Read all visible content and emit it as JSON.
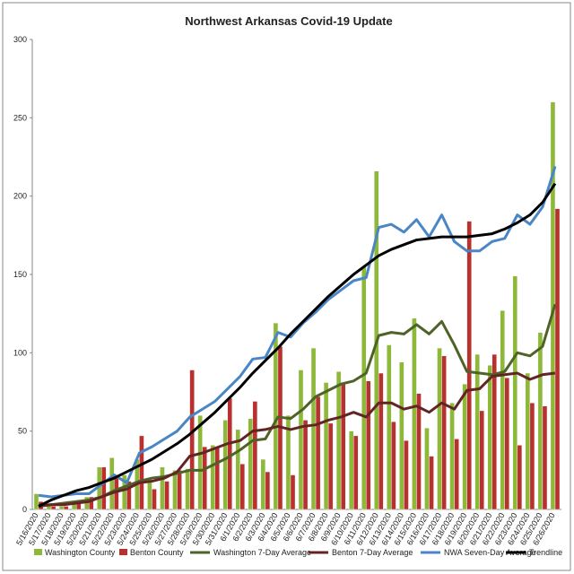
{
  "chart_data": {
    "type": "bar",
    "title": "Northwest Arkansas Covid-19 Update",
    "categories": [
      "5/16/2020",
      "5/17/2020",
      "5/18/2020",
      "5/19/2020",
      "5/20/2020",
      "5/21/2020",
      "5/22/2020",
      "5/23/2020",
      "5/24/2020",
      "5/25/2020",
      "5/26/2020",
      "5/27/2020",
      "5/28/2020",
      "5/29/2020",
      "5/30/2020",
      "5/31/2020",
      "6/1/2020",
      "6/2/2020",
      "6/3/2020",
      "6/4/2020",
      "6/5/2020",
      "6/6/2020",
      "6/7/2020",
      "6/8/2020",
      "6/9/2020",
      "6/10/2020",
      "6/11/2020",
      "6/12/2020",
      "6/13/2020",
      "6/14/2020",
      "6/15/2020",
      "6/16/2020",
      "6/17/2020",
      "6/18/2020",
      "6/19/2020",
      "6/20/2020",
      "6/21/2020",
      "6/22/2020",
      "6/23/2020",
      "6/24/2020",
      "6/25/2020",
      "6/26/2020"
    ],
    "series": [
      {
        "name": "Washington County",
        "type": "bar",
        "color": "#8db83a",
        "values": [
          10,
          3,
          2,
          4,
          8,
          27,
          33,
          22,
          32,
          20,
          27,
          25,
          26,
          60,
          41,
          57,
          51,
          58,
          32,
          119,
          60,
          89,
          103,
          81,
          88,
          50,
          155,
          216,
          105,
          94,
          122,
          52,
          103,
          68,
          80,
          99,
          92,
          127,
          149,
          87,
          113,
          260
        ]
      },
      {
        "name": "Benton County",
        "type": "bar",
        "color": "#b8312f",
        "values": [
          5,
          2,
          2,
          4,
          8,
          27,
          22,
          18,
          47,
          13,
          18,
          25,
          89,
          40,
          40,
          71,
          29,
          69,
          24,
          104,
          22,
          57,
          72,
          55,
          80,
          47,
          82,
          87,
          56,
          44,
          74,
          34,
          98,
          45,
          184,
          63,
          99,
          84,
          41,
          68,
          66,
          192
        ]
      },
      {
        "name": "Washington 7-Day Average",
        "type": "line",
        "color": "#4f6228",
        "values": [
          3,
          3,
          4,
          5,
          6,
          8,
          12,
          15,
          18,
          20,
          21,
          23,
          25,
          25,
          29,
          33,
          38,
          44,
          45,
          59,
          58,
          64,
          72,
          76,
          80,
          82,
          87,
          111,
          113,
          112,
          118,
          112,
          120,
          105,
          88,
          87,
          86,
          88,
          100,
          98,
          104,
          131
        ]
      },
      {
        "name": "Benton 7-Day Average",
        "type": "line",
        "color": "#632523",
        "values": [
          2,
          3,
          3,
          4,
          5,
          8,
          11,
          13,
          17,
          18,
          20,
          24,
          34,
          36,
          39,
          42,
          44,
          50,
          51,
          53,
          51,
          53,
          54,
          57,
          59,
          62,
          59,
          68,
          68,
          64,
          66,
          62,
          68,
          64,
          76,
          77,
          85,
          86,
          87,
          83,
          86,
          87
        ]
      },
      {
        "name": "NWA Seven-Day Average",
        "type": "line",
        "color": "#4a86c5",
        "values": [
          9,
          8,
          9,
          10,
          10,
          16,
          22,
          17,
          36,
          40,
          45,
          50,
          59,
          64,
          69,
          77,
          85,
          96,
          97,
          113,
          110,
          119,
          126,
          134,
          140,
          146,
          148,
          180,
          182,
          177,
          185,
          174,
          188,
          171,
          165,
          165,
          171,
          173,
          188,
          182,
          193,
          219
        ]
      },
      {
        "name": "Trendline",
        "type": "line",
        "color": "#000000",
        "values": [
          2,
          6,
          9,
          12,
          14,
          17,
          20,
          24,
          28,
          32,
          37,
          42,
          48,
          55,
          62,
          70,
          78,
          87,
          95,
          103,
          112,
          120,
          128,
          136,
          143,
          150,
          156,
          162,
          166,
          169,
          172,
          173,
          174,
          174,
          174,
          175,
          176,
          179,
          183,
          188,
          196,
          208
        ]
      }
    ],
    "ylim": [
      0,
      300
    ],
    "yticks": [
      0,
      50,
      100,
      150,
      200,
      250,
      300
    ],
    "grid": false
  }
}
